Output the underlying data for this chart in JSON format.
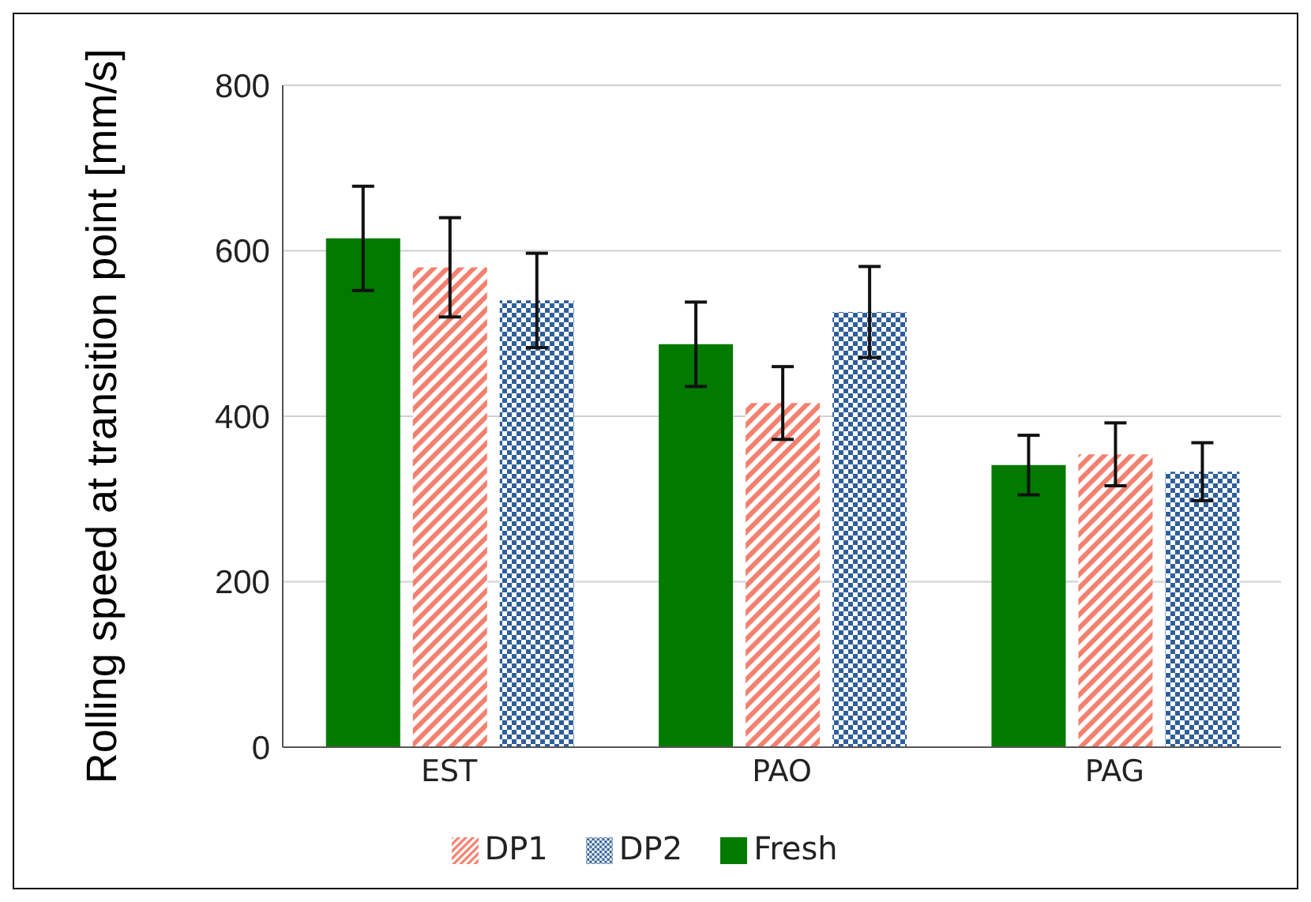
{
  "chart_data": {
    "type": "bar",
    "ylabel": "Rolling speed at transition point [mm/s]",
    "categories": [
      "EST",
      "PAO",
      "PAG"
    ],
    "series": [
      {
        "name": "Fresh",
        "color": "#007a00",
        "values": [
          615,
          487,
          341
        ],
        "errors": [
          63,
          51,
          36
        ]
      },
      {
        "name": "DP1",
        "color": "#f4806f",
        "values": [
          580,
          416,
          354
        ],
        "errors": [
          60,
          44,
          38
        ]
      },
      {
        "name": "DP2",
        "color": "#2f5f9a",
        "values": [
          540,
          526,
          333
        ],
        "errors": [
          57,
          55,
          35
        ]
      }
    ],
    "ylim": [
      0,
      800
    ],
    "yticks": [
      0,
      200,
      400,
      600,
      800
    ],
    "grid": "y",
    "legend": "bottom"
  }
}
